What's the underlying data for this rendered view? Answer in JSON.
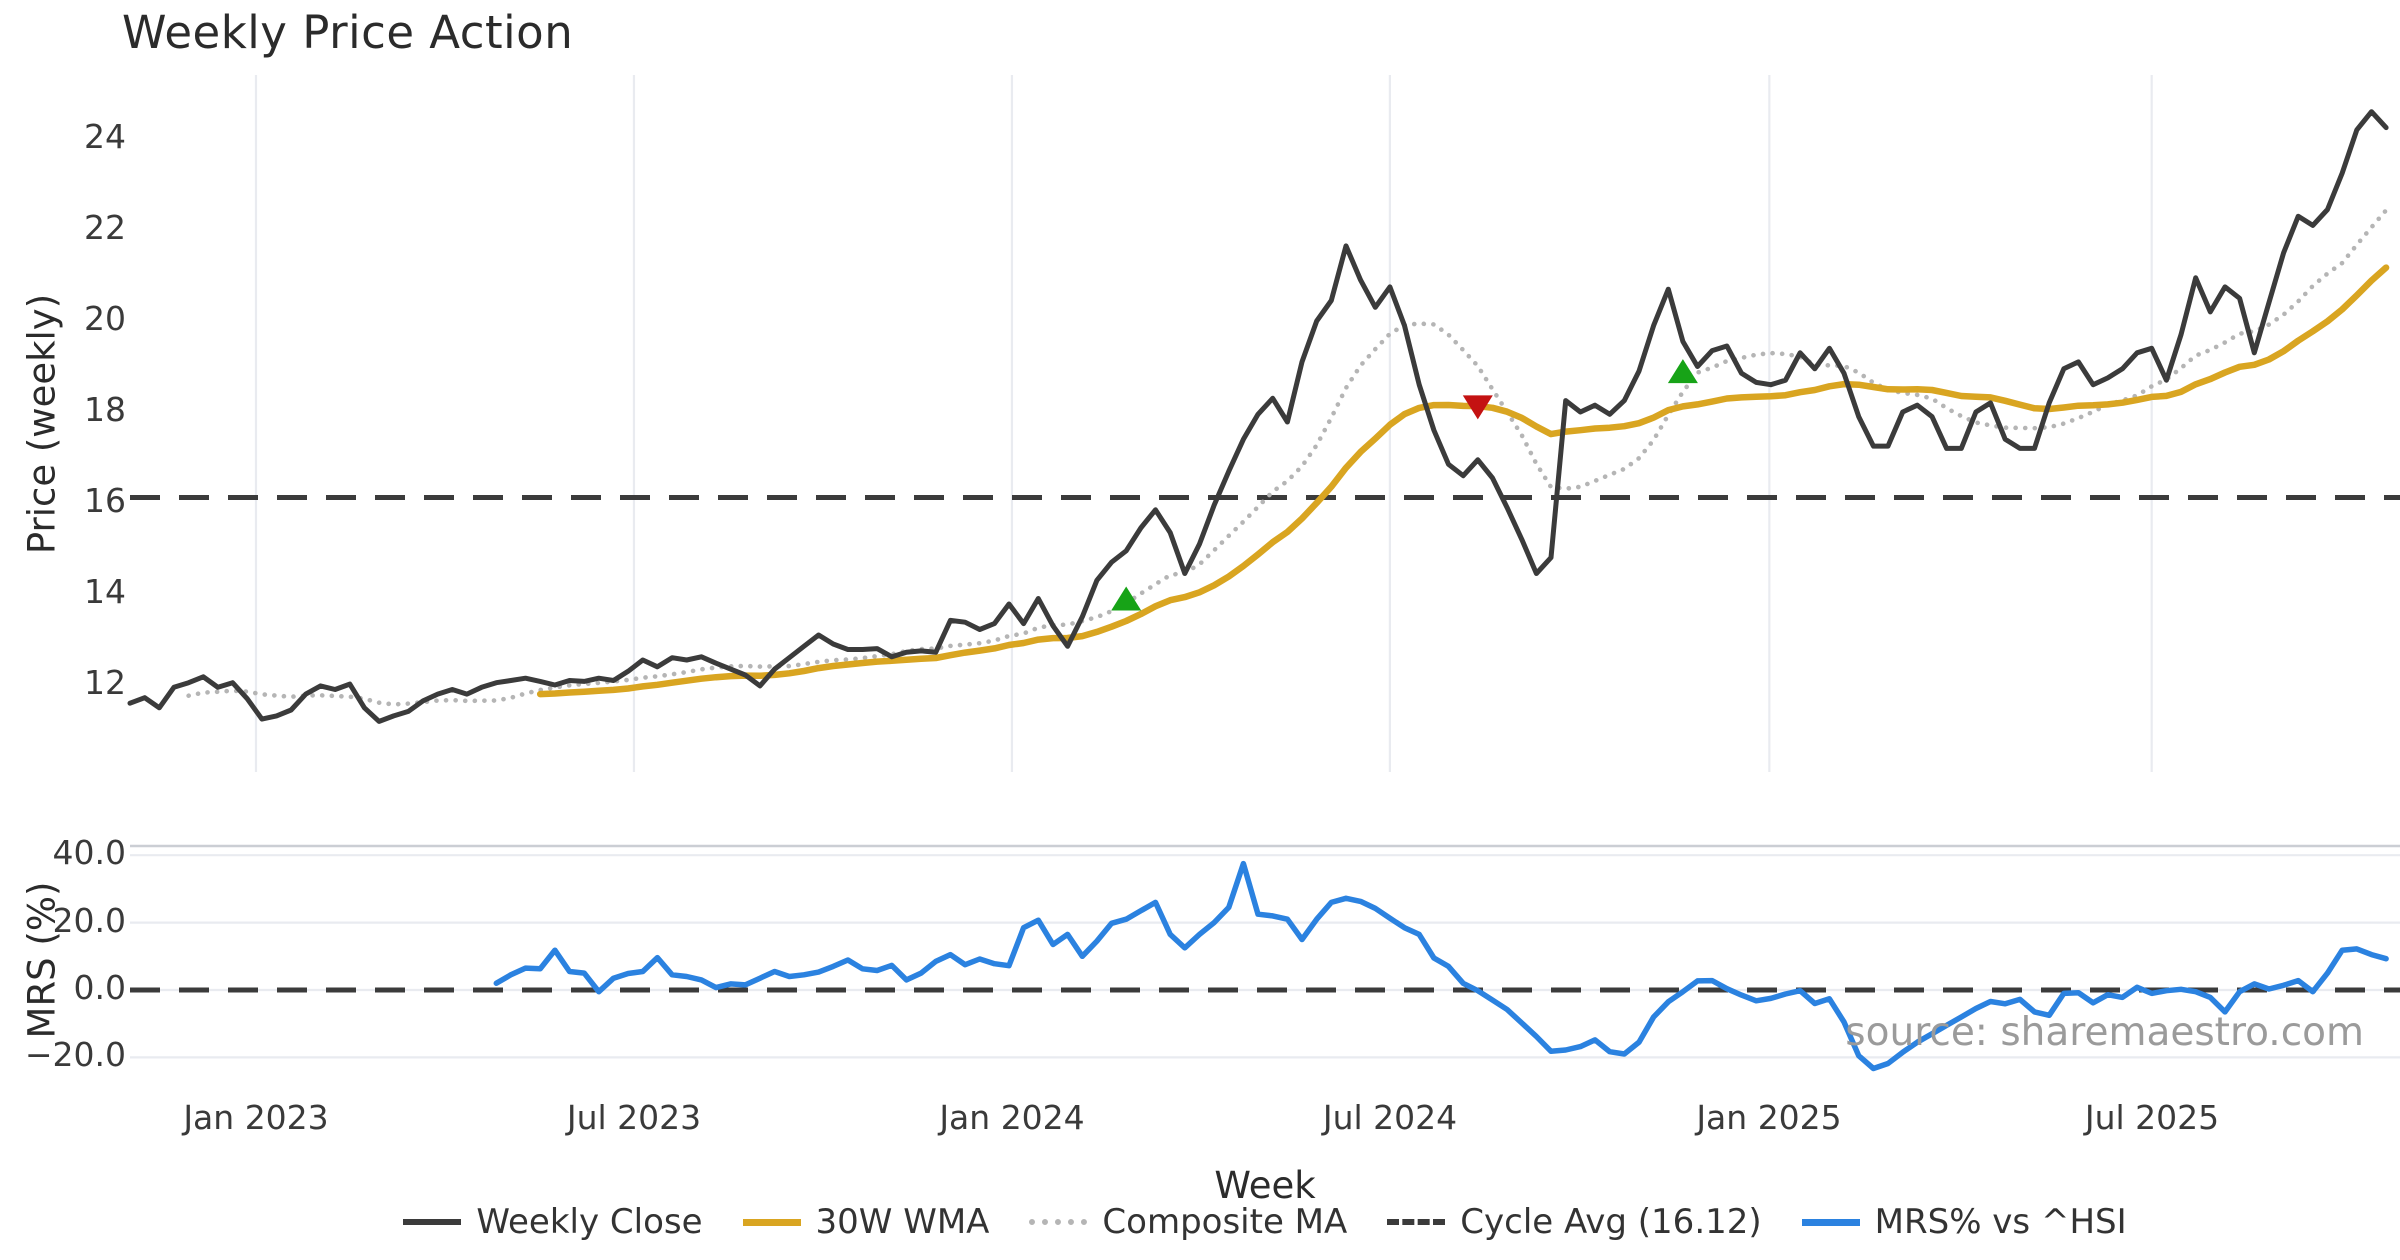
{
  "title": "Weekly Price Action",
  "source_note": "source: sharemaestro.com",
  "axes": {
    "price_axis": {
      "label": "Price (weekly)",
      "ticks": [
        "12",
        "14",
        "16",
        "18",
        "20",
        "22",
        "24"
      ],
      "tick_values": [
        12,
        14,
        16,
        18,
        20,
        22,
        24
      ]
    },
    "mrs_axis": {
      "label": "MRS (%)",
      "ticks": [
        "40.0",
        "20.0",
        "0.0",
        "−20.0"
      ],
      "tick_values": [
        40,
        20,
        0,
        -20
      ]
    },
    "x_axis": {
      "label": "Week",
      "ticks": [
        "Jan 2023",
        "Jul 2023",
        "Jan 2024",
        "Jul 2024",
        "Jan 2025",
        "Jul 2025"
      ]
    }
  },
  "legend": {
    "items": [
      {
        "label": "Weekly Close",
        "style": "solid",
        "color": "#3b3b3b"
      },
      {
        "label": "30W WMA",
        "style": "solid",
        "color": "#d9a521"
      },
      {
        "label": "Composite MA",
        "style": "dotted",
        "color": "#b5b5b5"
      },
      {
        "label": "Cycle Avg (16.12)",
        "style": "dashed",
        "color": "#3b3b3b"
      },
      {
        "label": "MRS% vs ^HSI",
        "style": "solid",
        "color": "#2b82e0"
      }
    ]
  },
  "colors": {
    "weekly_close": "#3b3b3b",
    "wma": "#d9a521",
    "composite": "#b5b5b5",
    "cycle_avg": "#3b3b3b",
    "mrs": "#2b82e0",
    "buy_marker": "#17a317",
    "sell_marker": "#c41212",
    "gridline": "#e9ebf0",
    "panel_border": "#cbced4",
    "tick_text": "#3a3a3a",
    "source_text": "#9b9b9b"
  },
  "chart_data": [
    {
      "type": "line",
      "panel": "price",
      "title": "Weekly Price Action",
      "xlabel": "Week",
      "ylabel": "Price (weekly)",
      "ylim": [
        10.1,
        25.4
      ],
      "x_range_weeks": [
        0,
        154
      ],
      "x_tick_labels": [
        "Jan 2023",
        "Jul 2023",
        "Jan 2024",
        "Jul 2024",
        "Jan 2025",
        "Jul 2025"
      ],
      "x_tick_week_positions": [
        8.6,
        34.4,
        60.2,
        86.0,
        111.9,
        138.0
      ],
      "grid": "vertical",
      "legend_position": "bottom",
      "cycle_avg": 16.12,
      "series": [
        {
          "name": "Weekly Close",
          "week_start": 0,
          "values": [
            11.6,
            11.72,
            11.5,
            11.95,
            12.05,
            12.18,
            11.95,
            12.05,
            11.7,
            11.25,
            11.32,
            11.45,
            11.8,
            11.98,
            11.9,
            12.02,
            11.5,
            11.2,
            11.32,
            11.42,
            11.65,
            11.8,
            11.9,
            11.8,
            11.95,
            12.05,
            12.1,
            12.15,
            12.08,
            12.0,
            12.1,
            12.08,
            12.15,
            12.1,
            12.3,
            12.55,
            12.4,
            12.6,
            12.55,
            12.62,
            12.48,
            12.35,
            12.22,
            11.98,
            12.35,
            12.6,
            12.85,
            13.1,
            12.9,
            12.78,
            12.78,
            12.8,
            12.62,
            12.72,
            12.75,
            12.72,
            13.42,
            13.38,
            13.22,
            13.35,
            13.78,
            13.35,
            13.9,
            13.3,
            12.85,
            13.5,
            14.3,
            14.7,
            14.95,
            15.45,
            15.85,
            15.35,
            14.45,
            15.1,
            15.95,
            16.7,
            17.4,
            17.95,
            18.3,
            17.78,
            19.1,
            20.0,
            20.45,
            21.65,
            20.9,
            20.3,
            20.75,
            19.9,
            18.6,
            17.6,
            16.85,
            16.6,
            16.95,
            16.55,
            15.9,
            15.2,
            14.45,
            14.8,
            18.25,
            18.0,
            18.15,
            17.95,
            18.25,
            18.9,
            19.9,
            20.7,
            19.55,
            19.0,
            19.35,
            19.45,
            18.85,
            18.65,
            18.6,
            18.7,
            19.3,
            18.95,
            19.4,
            18.85,
            17.9,
            17.25,
            17.25,
            18.0,
            18.15,
            17.9,
            17.2,
            17.2,
            18.0,
            18.2,
            17.4,
            17.2,
            17.2,
            18.2,
            18.95,
            19.1,
            18.6,
            18.75,
            18.95,
            19.3,
            19.4,
            18.7,
            19.7,
            20.95,
            20.2,
            20.75,
            20.5,
            19.3,
            20.4,
            21.5,
            22.3,
            22.1,
            22.45,
            23.25,
            24.2,
            24.6,
            24.25
          ]
        },
        {
          "name": "30W WMA",
          "derived_from": "Weekly Close",
          "method": "30-week weighted moving average",
          "week_start": 28
        },
        {
          "name": "Composite MA",
          "derived_from": "Weekly Close",
          "method": "10-week composite moving average",
          "week_start": 4
        }
      ],
      "signals": [
        {
          "week_index": 68,
          "type": "buy",
          "price": 13.9
        },
        {
          "week_index": 92,
          "type": "sell",
          "price": 18.1
        },
        {
          "week_index": 106,
          "type": "buy",
          "price": 18.9
        }
      ]
    },
    {
      "type": "line",
      "panel": "mrs",
      "ylabel": "MRS (%)",
      "ylim": [
        -24.3,
        42.7
      ],
      "ytick_values": [
        40,
        20,
        0,
        -20
      ],
      "zero_line": "dashed",
      "grid": "horizontal",
      "series": [
        {
          "name": "MRS% vs ^HSI",
          "week_start": 25,
          "values": [
            2.0,
            4.5,
            6.5,
            6.3,
            11.8,
            5.5,
            5.0,
            -0.5,
            3.5,
            4.9,
            5.5,
            9.6,
            4.5,
            4.0,
            3.0,
            0.7,
            1.8,
            1.5,
            3.5,
            5.5,
            4.0,
            4.5,
            5.3,
            7.0,
            8.9,
            6.3,
            5.8,
            7.3,
            3.0,
            5.0,
            8.5,
            10.5,
            7.5,
            9.2,
            7.8,
            7.2,
            18.5,
            20.7,
            13.5,
            16.5,
            10.0,
            14.5,
            19.8,
            21.0,
            23.5,
            26.0,
            16.5,
            12.5,
            16.5,
            20.0,
            24.5,
            37.5,
            22.5,
            22.0,
            21.0,
            15.0,
            21.0,
            26.0,
            27.2,
            26.3,
            24.2,
            21.3,
            18.5,
            16.5,
            9.5,
            7.0,
            2.0,
            -0.2,
            -3.0,
            -5.8,
            -9.8,
            -13.8,
            -18.2,
            -17.8,
            -16.8,
            -14.8,
            -18.3,
            -19.0,
            -15.5,
            -8.0,
            -3.5,
            -0.5,
            2.7,
            2.8,
            0.4,
            -1.5,
            -3.2,
            -2.5,
            -1.2,
            -0.2,
            -4.0,
            -2.6,
            -9.5,
            -19.5,
            -23.3,
            -21.8,
            -18.5,
            -15.5,
            -13.0,
            -10.5,
            -8.0,
            -5.5,
            -3.4,
            -4.1,
            -2.8,
            -6.5,
            -7.5,
            -1.0,
            -0.8,
            -3.8,
            -1.4,
            -2.2,
            0.8,
            -1.0,
            -0.2,
            0.2,
            -0.5,
            -2.2,
            -6.5,
            -0.5,
            1.8,
            0.3,
            1.4,
            2.8,
            -0.5,
            5.0,
            11.8,
            12.2,
            10.5,
            9.3
          ]
        }
      ]
    }
  ]
}
